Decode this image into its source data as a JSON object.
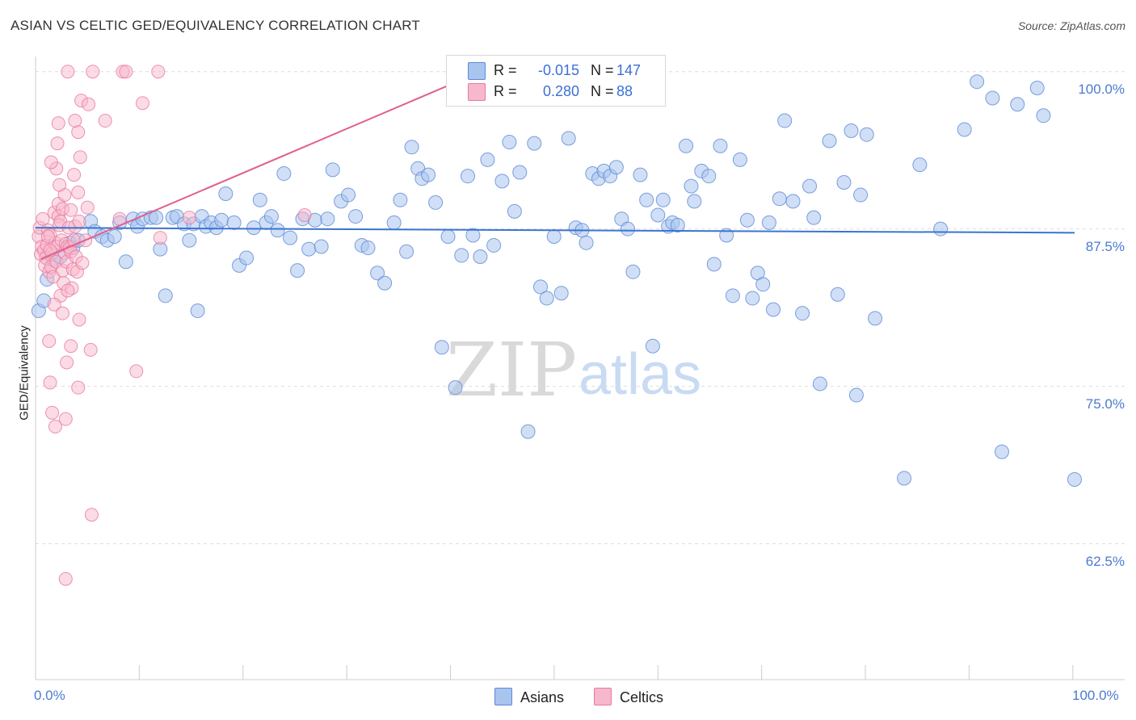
{
  "header": {
    "title": "ASIAN VS CELTIC GED/EQUIVALENCY CORRELATION CHART",
    "source": "Source: ZipAtlas.com"
  },
  "watermark": {
    "zip": "ZIP",
    "atlas": "atlas"
  },
  "stats": {
    "asians": {
      "r_label": "R =",
      "r_value": "-0.015",
      "n_label": "N =",
      "n_value": "147",
      "color": "#7fa8e8"
    },
    "celtics": {
      "r_label": "R =",
      "r_value": "0.280",
      "n_label": "N =",
      "n_value": "88",
      "color": "#f19bb8"
    }
  },
  "legend": {
    "asians_label": "Asians",
    "celtics_label": "Celtics"
  },
  "colors": {
    "asian_fill": "#a9c4ee",
    "asian_stroke": "#5b8ad6",
    "asian_line": "#3a74d0",
    "celtic_fill": "#f7b7cc",
    "celtic_stroke": "#e8799d",
    "celtic_line": "#e0608d",
    "tick_text": "#4a7bd0",
    "grid": "#dddddd"
  },
  "chart_data": {
    "type": "scatter",
    "title": "ASIAN VS CELTIC GED/EQUIVALENCY CORRELATION CHART",
    "xlabel": "",
    "ylabel": "GED/Equivalency",
    "xlim": [
      0,
      100
    ],
    "ylim": [
      51.7,
      101.2
    ],
    "x_tick_labels": [
      "0.0%",
      "100.0%"
    ],
    "y_ticks": [
      62.5,
      75.0,
      87.5,
      100.0
    ],
    "y_tick_labels": [
      "62.5%",
      "75.0%",
      "87.5%",
      "100.0%"
    ],
    "grid": true,
    "series": [
      {
        "name": "Asians",
        "r": -0.015,
        "n": 147,
        "trend": {
          "x": [
            0,
            100
          ],
          "y": [
            87.6,
            87.2
          ]
        },
        "points": [
          [
            0.3,
            81.0
          ],
          [
            0.8,
            81.8
          ],
          [
            1.1,
            83.5
          ],
          [
            1.7,
            85.1
          ],
          [
            2.4,
            85.3
          ],
          [
            3.3,
            86.4
          ],
          [
            3.6,
            86.0
          ],
          [
            4.1,
            86.6
          ],
          [
            5.3,
            88.1
          ],
          [
            5.7,
            87.3
          ],
          [
            6.4,
            86.9
          ],
          [
            6.9,
            86.6
          ],
          [
            7.6,
            86.9
          ],
          [
            8.1,
            88.0
          ],
          [
            8.7,
            84.9
          ],
          [
            9.4,
            88.3
          ],
          [
            9.8,
            87.7
          ],
          [
            10.3,
            88.3
          ],
          [
            11.1,
            88.4
          ],
          [
            11.6,
            88.4
          ],
          [
            12.0,
            85.9
          ],
          [
            12.5,
            82.2
          ],
          [
            13.2,
            88.4
          ],
          [
            13.6,
            88.5
          ],
          [
            14.3,
            87.9
          ],
          [
            14.8,
            86.6
          ],
          [
            15.2,
            87.9
          ],
          [
            15.6,
            81.0
          ],
          [
            16.0,
            88.5
          ],
          [
            16.4,
            87.7
          ],
          [
            16.9,
            88.0
          ],
          [
            17.4,
            87.6
          ],
          [
            17.9,
            88.2
          ],
          [
            18.3,
            90.3
          ],
          [
            19.1,
            88.0
          ],
          [
            19.6,
            84.6
          ],
          [
            20.3,
            85.2
          ],
          [
            21.0,
            87.6
          ],
          [
            21.6,
            89.8
          ],
          [
            22.2,
            88.0
          ],
          [
            22.7,
            88.5
          ],
          [
            23.3,
            87.4
          ],
          [
            23.9,
            91.9
          ],
          [
            24.5,
            86.8
          ],
          [
            25.2,
            84.2
          ],
          [
            25.7,
            88.3
          ],
          [
            26.3,
            85.9
          ],
          [
            26.9,
            88.2
          ],
          [
            27.5,
            86.1
          ],
          [
            28.1,
            88.3
          ],
          [
            28.6,
            92.2
          ],
          [
            29.4,
            89.7
          ],
          [
            30.1,
            90.2
          ],
          [
            30.8,
            88.5
          ],
          [
            31.4,
            86.2
          ],
          [
            32.0,
            86.0
          ],
          [
            32.9,
            84.0
          ],
          [
            33.6,
            83.2
          ],
          [
            34.5,
            88.0
          ],
          [
            35.1,
            89.8
          ],
          [
            35.7,
            85.7
          ],
          [
            36.2,
            94.0
          ],
          [
            36.8,
            92.3
          ],
          [
            37.2,
            91.5
          ],
          [
            37.8,
            91.8
          ],
          [
            38.5,
            89.6
          ],
          [
            39.1,
            78.1
          ],
          [
            39.7,
            86.9
          ],
          [
            40.4,
            74.9
          ],
          [
            41.0,
            85.4
          ],
          [
            41.6,
            91.7
          ],
          [
            42.1,
            87.0
          ],
          [
            42.8,
            85.3
          ],
          [
            43.5,
            93.0
          ],
          [
            44.1,
            86.2
          ],
          [
            44.9,
            91.3
          ],
          [
            45.6,
            94.4
          ],
          [
            46.1,
            88.9
          ],
          [
            46.6,
            92.0
          ],
          [
            47.4,
            71.4
          ],
          [
            48.0,
            94.3
          ],
          [
            48.6,
            82.9
          ],
          [
            49.2,
            82.0
          ],
          [
            49.9,
            86.9
          ],
          [
            50.6,
            82.4
          ],
          [
            51.3,
            94.7
          ],
          [
            52.0,
            87.6
          ],
          [
            52.6,
            87.4
          ],
          [
            53.0,
            86.4
          ],
          [
            53.6,
            91.9
          ],
          [
            54.2,
            91.5
          ],
          [
            54.7,
            92.1
          ],
          [
            55.3,
            91.7
          ],
          [
            55.9,
            92.4
          ],
          [
            56.4,
            88.3
          ],
          [
            57.0,
            87.5
          ],
          [
            57.5,
            84.1
          ],
          [
            58.2,
            91.8
          ],
          [
            58.8,
            89.8
          ],
          [
            59.4,
            78.2
          ],
          [
            59.9,
            88.6
          ],
          [
            60.4,
            89.8
          ],
          [
            60.9,
            87.7
          ],
          [
            61.3,
            88.0
          ],
          [
            61.8,
            87.8
          ],
          [
            62.6,
            94.1
          ],
          [
            63.1,
            90.9
          ],
          [
            63.4,
            89.7
          ],
          [
            64.1,
            92.1
          ],
          [
            64.8,
            91.7
          ],
          [
            65.3,
            84.7
          ],
          [
            65.9,
            94.1
          ],
          [
            66.5,
            87.0
          ],
          [
            67.1,
            82.2
          ],
          [
            67.8,
            93.0
          ],
          [
            68.5,
            88.2
          ],
          [
            69.0,
            82.0
          ],
          [
            69.5,
            84.0
          ],
          [
            70.0,
            83.1
          ],
          [
            70.6,
            88.0
          ],
          [
            71.0,
            81.1
          ],
          [
            71.6,
            89.9
          ],
          [
            72.1,
            96.1
          ],
          [
            72.9,
            89.7
          ],
          [
            73.8,
            80.8
          ],
          [
            74.5,
            90.9
          ],
          [
            74.9,
            88.4
          ],
          [
            75.5,
            75.2
          ],
          [
            76.4,
            94.5
          ],
          [
            77.2,
            82.3
          ],
          [
            77.8,
            91.2
          ],
          [
            78.5,
            95.3
          ],
          [
            79.0,
            74.3
          ],
          [
            79.4,
            90.2
          ],
          [
            80.0,
            95.0
          ],
          [
            80.8,
            80.4
          ],
          [
            83.6,
            67.7
          ],
          [
            85.1,
            92.6
          ],
          [
            87.1,
            87.5
          ],
          [
            89.4,
            95.4
          ],
          [
            90.6,
            99.2
          ],
          [
            92.1,
            97.9
          ],
          [
            93.0,
            69.8
          ],
          [
            94.5,
            97.4
          ],
          [
            100.0,
            67.6
          ],
          [
            97.0,
            96.5
          ],
          [
            96.4,
            98.7
          ]
        ]
      },
      {
        "name": "Celtics",
        "r": 0.28,
        "n": 88,
        "trend": {
          "x": [
            0.5,
            42.0
          ],
          "y": [
            85.1,
            99.7
          ]
        },
        "points": [
          [
            0.3,
            86.9
          ],
          [
            0.4,
            87.6
          ],
          [
            0.5,
            85.5
          ],
          [
            0.6,
            86.1
          ],
          [
            0.7,
            88.3
          ],
          [
            0.8,
            85.8
          ],
          [
            0.9,
            84.6
          ],
          [
            1.0,
            85.2
          ],
          [
            1.1,
            86.2
          ],
          [
            1.2,
            87.4
          ],
          [
            1.3,
            84.1
          ],
          [
            1.4,
            87.0
          ],
          [
            1.5,
            84.5
          ],
          [
            1.6,
            85.6
          ],
          [
            1.7,
            83.7
          ],
          [
            1.8,
            88.8
          ],
          [
            1.9,
            86.4
          ],
          [
            2.0,
            84.9
          ],
          [
            2.1,
            86.1
          ],
          [
            2.2,
            88.5
          ],
          [
            2.3,
            87.8
          ],
          [
            2.4,
            88.1
          ],
          [
            2.5,
            86.6
          ],
          [
            2.6,
            84.2
          ],
          [
            2.7,
            83.2
          ],
          [
            2.8,
            85.6
          ],
          [
            2.9,
            86.3
          ],
          [
            3.0,
            84.9
          ],
          [
            3.1,
            86.1
          ],
          [
            3.2,
            87.6
          ],
          [
            3.3,
            86.0
          ],
          [
            3.4,
            85.7
          ],
          [
            3.5,
            82.8
          ],
          [
            3.6,
            84.3
          ],
          [
            3.7,
            86.6
          ],
          [
            3.8,
            87.7
          ],
          [
            3.9,
            85.3
          ],
          [
            4.0,
            84.1
          ],
          [
            4.2,
            88.1
          ],
          [
            4.5,
            84.8
          ],
          [
            1.4,
            85.8
          ],
          [
            1.2,
            86.9
          ],
          [
            2.2,
            89.5
          ],
          [
            2.6,
            89.1
          ],
          [
            2.8,
            90.2
          ],
          [
            3.4,
            89.0
          ],
          [
            2.3,
            91.0
          ],
          [
            2.0,
            92.3
          ],
          [
            1.5,
            92.8
          ],
          [
            3.7,
            91.8
          ],
          [
            4.3,
            93.2
          ],
          [
            2.1,
            94.3
          ],
          [
            4.1,
            95.2
          ],
          [
            2.2,
            95.9
          ],
          [
            3.8,
            96.1
          ],
          [
            6.7,
            96.1
          ],
          [
            4.4,
            97.7
          ],
          [
            5.1,
            97.4
          ],
          [
            10.3,
            97.5
          ],
          [
            3.1,
            100.0
          ],
          [
            5.5,
            100.0
          ],
          [
            8.4,
            100.0
          ],
          [
            8.7,
            100.0
          ],
          [
            11.8,
            100.0
          ],
          [
            4.1,
            90.4
          ],
          [
            5.0,
            89.2
          ],
          [
            4.8,
            86.6
          ],
          [
            2.4,
            82.2
          ],
          [
            3.1,
            82.6
          ],
          [
            1.8,
            81.5
          ],
          [
            2.6,
            80.8
          ],
          [
            4.2,
            80.3
          ],
          [
            1.3,
            78.6
          ],
          [
            3.4,
            78.2
          ],
          [
            5.3,
            77.9
          ],
          [
            3.0,
            76.9
          ],
          [
            1.4,
            75.3
          ],
          [
            4.1,
            74.9
          ],
          [
            9.7,
            76.2
          ],
          [
            1.6,
            72.9
          ],
          [
            2.9,
            72.4
          ],
          [
            1.9,
            71.8
          ],
          [
            5.4,
            64.8
          ],
          [
            2.9,
            59.7
          ],
          [
            12.0,
            86.8
          ],
          [
            14.8,
            88.4
          ],
          [
            25.9,
            88.6
          ],
          [
            8.1,
            88.3
          ]
        ]
      }
    ]
  }
}
